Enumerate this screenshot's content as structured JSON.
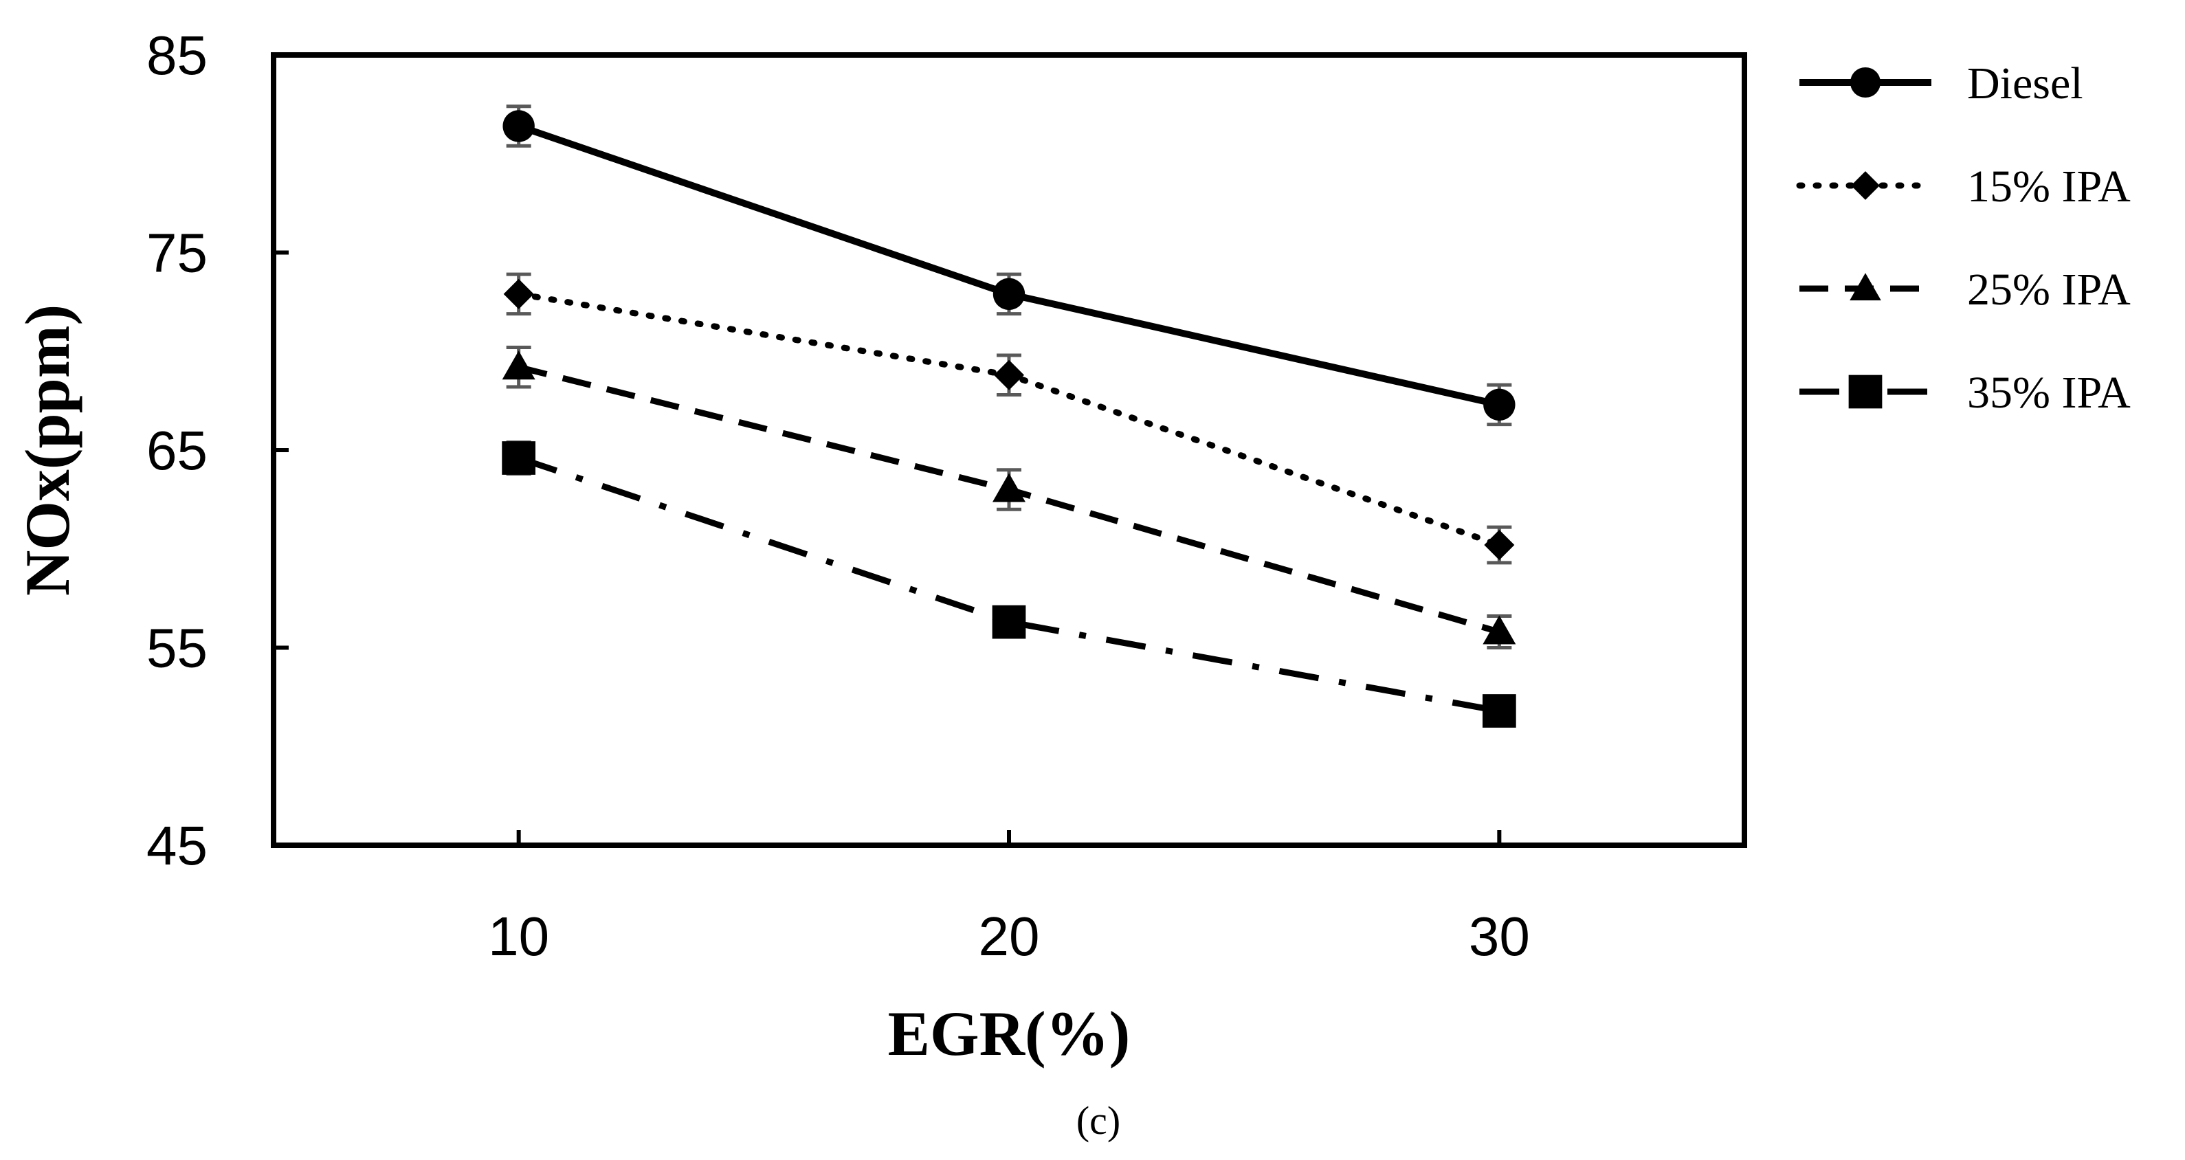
{
  "chart_data": {
    "type": "line",
    "title": "",
    "caption": "(c)",
    "xlabel": "EGR(%)",
    "ylabel": "NOx(ppm)",
    "x": [
      10,
      20,
      30
    ],
    "x_tick_labels": [
      "10",
      "20",
      "30"
    ],
    "xlim": [
      5,
      35
    ],
    "ylim": [
      45,
      85
    ],
    "y_ticks": [
      45,
      55,
      65,
      75,
      85
    ],
    "y_tick_labels": [
      "45",
      "55",
      "65",
      "75",
      "85"
    ],
    "grid": false,
    "legend_position": "right",
    "series": [
      {
        "name": "Diesel",
        "values": [
          81.4,
          72.9,
          67.3
        ],
        "errors": [
          1.0,
          1.0,
          1.0
        ],
        "marker": "circle",
        "line_style": "solid",
        "color": "#000000"
      },
      {
        "name": "15% IPA",
        "values": [
          72.9,
          68.8,
          60.2
        ],
        "errors": [
          1.0,
          1.0,
          0.9
        ],
        "marker": "diamond",
        "line_style": "dotted",
        "color": "#000000"
      },
      {
        "name": "25% IPA",
        "values": [
          69.2,
          63.0,
          55.8
        ],
        "errors": [
          1.0,
          1.0,
          0.8
        ],
        "marker": "triangle",
        "line_style": "dashed",
        "color": "#000000"
      },
      {
        "name": "35% IPA",
        "values": [
          64.6,
          56.3,
          51.8
        ],
        "errors": [
          0.8,
          0.7,
          0.6
        ],
        "marker": "square",
        "line_style": "dash-dot",
        "color": "#000000"
      }
    ],
    "error_bar_color": "#595959"
  }
}
